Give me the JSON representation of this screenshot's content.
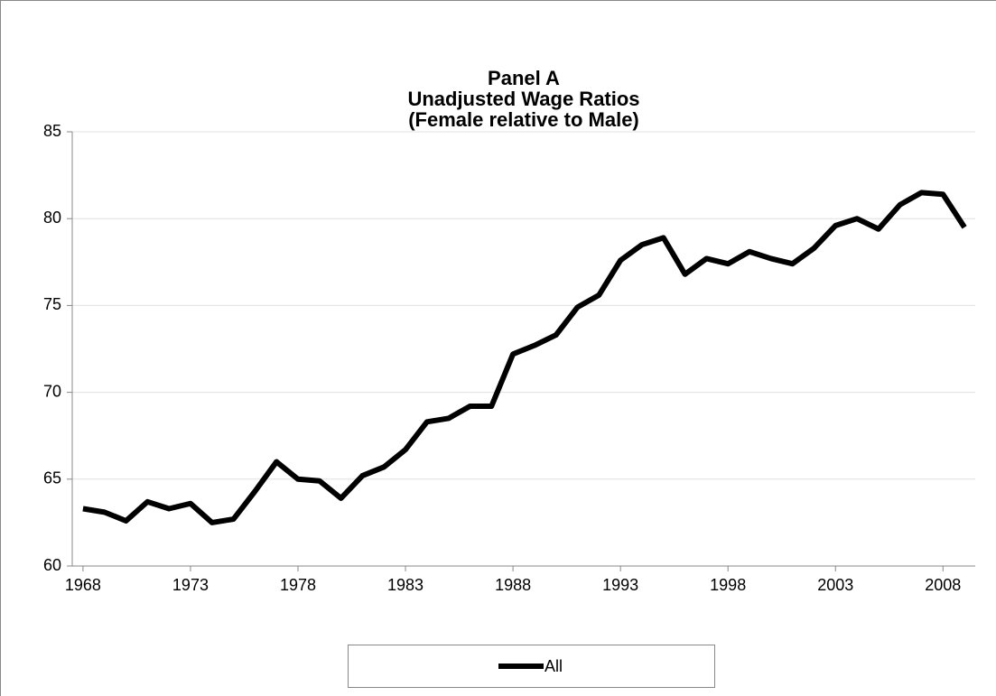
{
  "chart_data": {
    "type": "line",
    "title": [
      "Panel A",
      "Unadjusted Wage Ratios",
      "(Female relative to Male)"
    ],
    "x": [
      1968,
      1969,
      1970,
      1971,
      1972,
      1973,
      1974,
      1975,
      1976,
      1977,
      1978,
      1979,
      1980,
      1981,
      1982,
      1983,
      1984,
      1985,
      1986,
      1987,
      1988,
      1989,
      1990,
      1991,
      1992,
      1993,
      1994,
      1995,
      1996,
      1997,
      1998,
      1999,
      2000,
      2001,
      2002,
      2003,
      2004,
      2005,
      2006,
      2007,
      2008,
      2009
    ],
    "series": [
      {
        "name": "All",
        "color": "#000000",
        "values": [
          63.3,
          63.1,
          62.6,
          63.7,
          63.3,
          63.6,
          62.5,
          62.7,
          64.3,
          66.0,
          65.0,
          64.9,
          63.9,
          65.2,
          65.7,
          66.7,
          68.3,
          68.5,
          69.2,
          69.2,
          72.2,
          72.7,
          73.3,
          74.9,
          75.6,
          77.6,
          78.5,
          78.9,
          76.8,
          77.7,
          77.4,
          78.1,
          77.7,
          77.4,
          78.3,
          79.6,
          80.0,
          79.4,
          80.8,
          81.5,
          81.4,
          79.5
        ]
      }
    ],
    "xlim": [
      1967.5,
      2009.5
    ],
    "xticks": [
      1968,
      1973,
      1978,
      1983,
      1988,
      1993,
      1998,
      2003,
      2008
    ],
    "ylim": [
      60,
      85
    ],
    "yticks": [
      60,
      65,
      70,
      75,
      80,
      85
    ],
    "grid": true,
    "legend": "bottom"
  }
}
